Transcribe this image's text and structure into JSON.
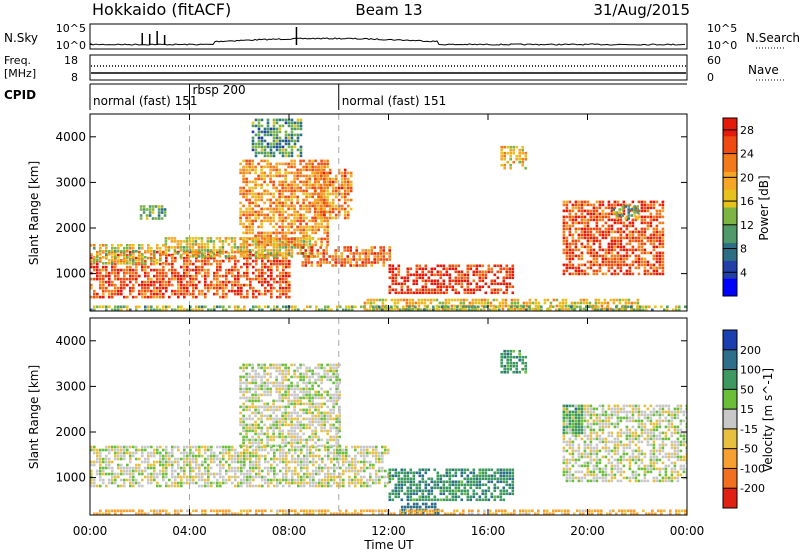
{
  "header": {
    "station": "Hokkaido (fitACF)",
    "beam": "Beam 13",
    "date": "31/Aug/2015"
  },
  "strip_panels": {
    "nsky": {
      "label": "N.Sky",
      "ticks_left": [
        "10^5",
        "10^0"
      ],
      "ticks_right": [
        "10^5",
        "10^0"
      ],
      "right_label": "N.Search"
    },
    "freq": {
      "label_line1": "Freq.",
      "label_line2": "[MHz]",
      "ticks_left": [
        "18",
        "8"
      ],
      "ticks_right": [
        "60",
        "0"
      ],
      "right_label": "Nave"
    },
    "cpid": {
      "label": "CPID",
      "segments": [
        {
          "start_hour": 0.0,
          "text": "normal (fast) 151"
        },
        {
          "start_hour": 4.0,
          "text": "rbsp 200"
        },
        {
          "start_hour": 10.0,
          "text": "normal (fast) 151"
        }
      ]
    }
  },
  "axes": {
    "x_ticks": [
      "00:00",
      "04:00",
      "08:00",
      "12:00",
      "16:00",
      "20:00",
      "00:00"
    ],
    "x_title": "Time UT",
    "y_ticks": [
      "1000",
      "2000",
      "3000",
      "4000"
    ],
    "y_title": "Slant Range [km]"
  },
  "colors": {
    "power": [
      "#0000ff",
      "#2040a8",
      "#2e6e84",
      "#4f9a68",
      "#7db545",
      "#e8c21c",
      "#f5a623",
      "#f27a1a",
      "#ee4a12",
      "#e61a0a"
    ],
    "velocity_pos": [
      "#1a3fb0",
      "#2d6e8a",
      "#3e9960",
      "#69bf3a"
    ],
    "velocity_neutral": "#c8c8c8",
    "velocity_neg": [
      "#e8c040",
      "#f5a030",
      "#f07020",
      "#e02010"
    ]
  },
  "chart_data": [
    {
      "type": "heatmap",
      "title": "Power",
      "xlabel": "Time UT",
      "ylabel": "Slant Range [km]",
      "xlim": [
        0,
        24
      ],
      "ylim": [
        180,
        4500
      ],
      "colorbar": {
        "label": "Power [dB]",
        "ticks": [
          "4",
          "8",
          "12",
          "16",
          "20",
          "24",
          "28"
        ],
        "range": [
          0,
          30
        ]
      },
      "regions": [
        {
          "t0": 0.0,
          "t1": 8.0,
          "r0": 500,
          "r1": 1500,
          "level": 0.85
        },
        {
          "t0": 0.0,
          "t1": 3.0,
          "r0": 1200,
          "r1": 1650,
          "level": 0.55
        },
        {
          "t0": 3.0,
          "t1": 9.0,
          "r0": 1400,
          "r1": 1800,
          "level": 0.55
        },
        {
          "t0": 6.0,
          "t1": 9.5,
          "r0": 1600,
          "r1": 3500,
          "level": 0.7
        },
        {
          "t0": 8.5,
          "t1": 12.0,
          "r0": 1200,
          "r1": 1600,
          "level": 0.8
        },
        {
          "t0": 9.0,
          "t1": 10.5,
          "r0": 2200,
          "r1": 3300,
          "level": 0.75
        },
        {
          "t0": 12.0,
          "t1": 17.0,
          "r0": 600,
          "r1": 1200,
          "level": 0.92
        },
        {
          "t0": 11.0,
          "t1": 22.0,
          "r0": 250,
          "r1": 450,
          "level": 0.6
        },
        {
          "t0": 16.5,
          "t1": 17.5,
          "r0": 3300,
          "r1": 3800,
          "level": 0.6
        },
        {
          "t0": 19.0,
          "t1": 23.0,
          "r0": 1000,
          "r1": 2600,
          "level": 0.85
        },
        {
          "t0": 2.0,
          "t1": 3.0,
          "r0": 2200,
          "r1": 2500,
          "level": 0.4
        },
        {
          "t0": 21.0,
          "t1": 22.0,
          "r0": 2200,
          "r1": 2500,
          "level": 0.4
        },
        {
          "t0": 6.5,
          "t1": 8.5,
          "r0": 3600,
          "r1": 4400,
          "level": 0.35
        },
        {
          "t0": 0.0,
          "t1": 24.0,
          "r0": 200,
          "r1": 300,
          "level": 0.45
        }
      ]
    },
    {
      "type": "heatmap",
      "title": "Velocity",
      "xlabel": "Time UT",
      "ylabel": "Slant Range [km]",
      "xlim": [
        0,
        24
      ],
      "ylim": [
        180,
        4500
      ],
      "colorbar": {
        "label": "Velocity [m s^-1]",
        "ticks": [
          "200",
          "100",
          "50",
          "15",
          "-15",
          "-50",
          "-100",
          "-200"
        ],
        "range": [
          -250,
          250
        ]
      },
      "regions": [
        {
          "t0": 0.0,
          "t1": 12.0,
          "r0": 800,
          "r1": 1700,
          "v": 0
        },
        {
          "t0": 6.0,
          "t1": 10.0,
          "r0": 1700,
          "r1": 3500,
          "v": 0
        },
        {
          "t0": 12.0,
          "t1": 17.0,
          "r0": 500,
          "r1": 1200,
          "v": 60
        },
        {
          "t0": 12.5,
          "t1": 14.0,
          "r0": 250,
          "r1": 450,
          "v": 120
        },
        {
          "t0": 19.0,
          "t1": 24.0,
          "r0": 900,
          "r1": 2600,
          "v": 0
        },
        {
          "t0": 0.0,
          "t1": 24.0,
          "r0": 200,
          "r1": 300,
          "v": -40
        },
        {
          "t0": 16.5,
          "t1": 17.5,
          "r0": 3300,
          "r1": 3800,
          "v": 60
        },
        {
          "t0": 19.0,
          "t1": 19.8,
          "r0": 2000,
          "r1": 2600,
          "v": 50
        }
      ]
    }
  ]
}
